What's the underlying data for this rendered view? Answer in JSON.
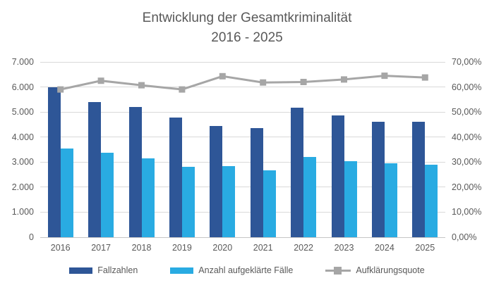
{
  "title": {
    "line1": "Entwicklung der Gesamtkriminalität",
    "line2": "2016 - 2025"
  },
  "colors": {
    "fallzahlen_bar": "#2E5697",
    "aufgeklaerte_bar": "#29ABE2",
    "quote_line": "#A6A6A6",
    "gridline": "#D9D9D9",
    "text": "#595959"
  },
  "legend": {
    "items": [
      {
        "label": "Fallzahlen"
      },
      {
        "label": "Anzahl aufgeklärte Fälle"
      },
      {
        "label": "Aufklärungsquote"
      }
    ]
  },
  "chart_data": {
    "type": "bar",
    "subtype": "combo-bar-line",
    "title": "Entwicklung der Gesamtkriminalität 2016 - 2025",
    "categories": [
      "2016",
      "2017",
      "2018",
      "2019",
      "2020",
      "2021",
      "2022",
      "2023",
      "2024",
      "2025"
    ],
    "series": [
      {
        "name": "Fallzahlen",
        "type": "bar",
        "axis": "left",
        "values": [
          6000,
          5400,
          5200,
          4780,
          4440,
          4360,
          5180,
          4860,
          4610,
          4610
        ]
      },
      {
        "name": "Anzahl aufgeklärte Fälle",
        "type": "bar",
        "axis": "left",
        "values": [
          3550,
          3360,
          3140,
          2800,
          2840,
          2680,
          3200,
          3040,
          2950,
          2910
        ]
      },
      {
        "name": "Aufklärungsquote",
        "type": "line",
        "axis": "right",
        "marker": "square",
        "values_percent": [
          59.0,
          62.5,
          60.7,
          59.0,
          64.3,
          61.8,
          62.0,
          63.0,
          64.5,
          63.8
        ]
      }
    ],
    "left_axis": {
      "min": 0,
      "max": 7000,
      "step": 1000,
      "tick_labels": [
        "0",
        "1.000",
        "2.000",
        "3.000",
        "4.000",
        "5.000",
        "6.000",
        "7.000"
      ]
    },
    "right_axis": {
      "min": 0,
      "max": 70,
      "step": 10,
      "tick_labels": [
        "0,00%",
        "10,00%",
        "20,00%",
        "30,00%",
        "40,00%",
        "50,00%",
        "60,00%",
        "70,00%"
      ]
    },
    "grid": true,
    "legend_position": "bottom"
  }
}
